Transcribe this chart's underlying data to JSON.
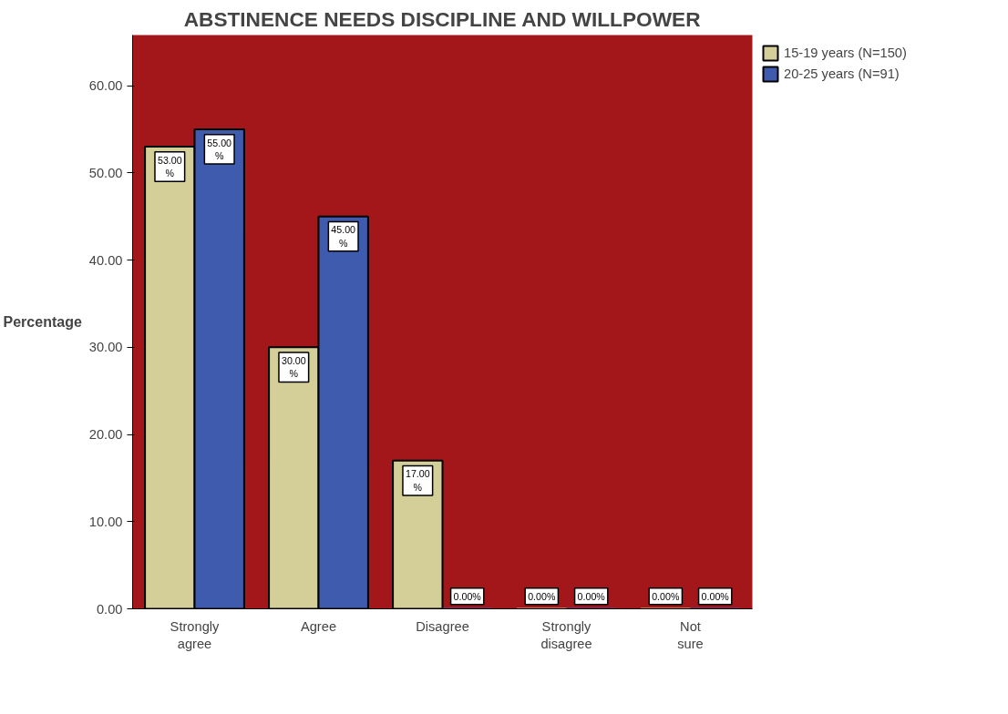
{
  "chart_data": {
    "type": "bar",
    "title": "ABSTINENCE NEEDS DISCIPLINE AND WILLPOWER",
    "ylabel": "Percentage",
    "categories": [
      "Strongly agree",
      "Agree",
      "Disagree",
      "Strongly disagree",
      "Not sure"
    ],
    "series": [
      {
        "name": "15-19 years (N=150)",
        "color": "#d4cf98",
        "values": [
          53,
          30,
          17,
          0,
          0
        ],
        "value_labels": [
          "53.00 %",
          "30.00 %",
          "17.00 %",
          "0.00%",
          "0.00%"
        ]
      },
      {
        "name": "20-25 years (N=91)",
        "color": "#3f5bae",
        "values": [
          55,
          45,
          0,
          0,
          0
        ],
        "value_labels": [
          "55.00 %",
          "45.00 %",
          "0.00%",
          "0.00%",
          "0.00%"
        ]
      }
    ],
    "ylim": [
      0,
      65.8
    ],
    "yticks": [
      {
        "value": 0,
        "label": "0.00"
      },
      {
        "value": 10,
        "label": "10.00"
      },
      {
        "value": 20,
        "label": "20.00"
      },
      {
        "value": 30,
        "label": "30.00"
      },
      {
        "value": 40,
        "label": "40.00"
      },
      {
        "value": 50,
        "label": "50.00"
      },
      {
        "value": 60,
        "label": "60.00"
      }
    ],
    "grid": false,
    "legend": "top right"
  }
}
